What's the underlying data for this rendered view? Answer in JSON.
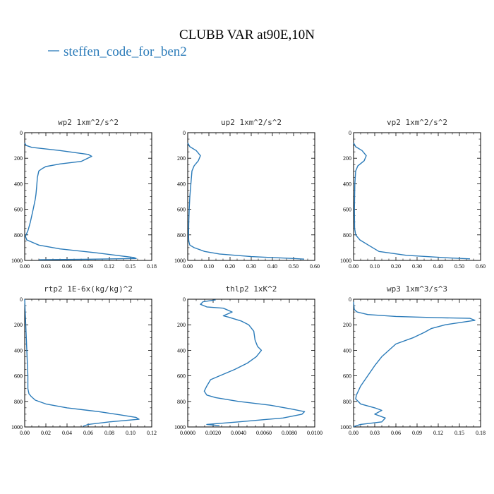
{
  "figure": {
    "title": "CLUBB VAR at90E,10N",
    "legend_label": "steffen_code_for_ben2",
    "series_color": "#2b7bb9"
  },
  "chart_data": [
    {
      "type": "line",
      "title": "wp2   1xm^2/s^2",
      "xlim": [
        0,
        0.18
      ],
      "xticks": [
        "0.00",
        "0.03",
        "0.06",
        "0.09",
        "0.12",
        "0.15",
        "0.18"
      ],
      "ylim": [
        0,
        1000
      ],
      "yticks": [
        "0",
        "200",
        "400",
        "600",
        "800",
        "1000"
      ],
      "y_inverted": true,
      "series": [
        {
          "x": [
            0.0,
            0.002,
            0.01,
            0.05,
            0.09,
            0.095,
            0.08,
            0.05,
            0.03,
            0.025,
            0.02,
            0.018,
            0.017,
            0.016,
            0.015,
            0.012,
            0.008,
            0.005,
            0.002,
            0.001,
            0.003,
            0.02,
            0.05,
            0.1,
            0.13,
            0.155,
            0.158,
            0.1,
            0.02
          ],
          "y": [
            80,
            100,
            115,
            140,
            170,
            185,
            225,
            245,
            265,
            280,
            300,
            350,
            420,
            480,
            520,
            600,
            700,
            760,
            800,
            810,
            840,
            880,
            910,
            940,
            960,
            978,
            985,
            990,
            995
          ]
        }
      ]
    },
    {
      "type": "line",
      "title": "up2   1xm^2/s^2",
      "xlim": [
        0,
        0.6
      ],
      "xticks": [
        "0.00",
        "0.10",
        "0.20",
        "0.30",
        "0.40",
        "0.50",
        "0.60"
      ],
      "ylim": [
        0,
        1000
      ],
      "yticks": [
        "0",
        "200",
        "400",
        "600",
        "800",
        "1000"
      ],
      "y_inverted": true,
      "series": [
        {
          "x": [
            0.0,
            0.01,
            0.04,
            0.06,
            0.05,
            0.03,
            0.02,
            0.015,
            0.01,
            0.007,
            0.005,
            0.004,
            0.005,
            0.01,
            0.03,
            0.08,
            0.15,
            0.3,
            0.5,
            0.55
          ],
          "y": [
            80,
            110,
            140,
            180,
            220,
            260,
            300,
            400,
            500,
            600,
            700,
            800,
            850,
            880,
            900,
            930,
            950,
            970,
            985,
            990
          ]
        }
      ]
    },
    {
      "type": "line",
      "title": "vp2   1xm^2/s^2",
      "xlim": [
        0,
        0.6
      ],
      "xticks": [
        "0.00",
        "0.10",
        "0.20",
        "0.30",
        "0.40",
        "0.50",
        "0.60"
      ],
      "ylim": [
        0,
        1000
      ],
      "yticks": [
        "0",
        "200",
        "400",
        "600",
        "800",
        "1000"
      ],
      "y_inverted": true,
      "series": [
        {
          "x": [
            0.0,
            0.01,
            0.04,
            0.06,
            0.05,
            0.02,
            0.01,
            0.006,
            0.004,
            0.005,
            0.01,
            0.03,
            0.07,
            0.12,
            0.25,
            0.45,
            0.55
          ],
          "y": [
            80,
            110,
            140,
            180,
            220,
            260,
            300,
            400,
            600,
            750,
            800,
            840,
            880,
            930,
            960,
            980,
            988
          ]
        }
      ]
    },
    {
      "type": "line",
      "title": "rtp2   1E-6x(kg/kg)^2",
      "xlim": [
        0,
        0.12
      ],
      "xticks": [
        "0.00",
        "0.02",
        "0.04",
        "0.06",
        "0.08",
        "0.10",
        "0.12"
      ],
      "ylim": [
        0,
        1000
      ],
      "yticks": [
        "0",
        "200",
        "400",
        "600",
        "800",
        "1000"
      ],
      "y_inverted": true,
      "series": [
        {
          "x": [
            0.0,
            0.001,
            0.002,
            0.003,
            0.003,
            0.004,
            0.006,
            0.01,
            0.02,
            0.04,
            0.07,
            0.09,
            0.105,
            0.108,
            0.08,
            0.06,
            0.055
          ],
          "y": [
            0,
            200,
            400,
            600,
            700,
            740,
            760,
            790,
            820,
            850,
            880,
            905,
            925,
            940,
            960,
            980,
            995
          ]
        }
      ]
    },
    {
      "type": "line",
      "title": "thlp2   1xK^2",
      "xlim": [
        0,
        0.01
      ],
      "xticks": [
        "0.0000",
        "0.0020",
        "0.0040",
        "0.0060",
        "0.0080",
        "0.0100"
      ],
      "ylim": [
        0,
        1000
      ],
      "yticks": [
        "0",
        "200",
        "400",
        "600",
        "800",
        "1000"
      ],
      "y_inverted": true,
      "series": [
        {
          "x": [
            0.0022,
            0.0012,
            0.001,
            0.0015,
            0.0028,
            0.0035,
            0.0028,
            0.0032,
            0.0042,
            0.0048,
            0.0052,
            0.0053,
            0.0055,
            0.0058,
            0.0054,
            0.0047,
            0.0037,
            0.0025,
            0.0018,
            0.0015,
            0.0013,
            0.0015,
            0.0022,
            0.004,
            0.0065,
            0.0082,
            0.0092,
            0.009,
            0.0075,
            0.004,
            0.0015,
            0.0025
          ],
          "y": [
            5,
            20,
            40,
            60,
            70,
            100,
            130,
            140,
            170,
            200,
            250,
            320,
            370,
            400,
            450,
            500,
            550,
            600,
            630,
            680,
            720,
            750,
            770,
            800,
            830,
            860,
            880,
            900,
            930,
            960,
            980,
            990
          ]
        }
      ]
    },
    {
      "type": "line",
      "title": "wp3   1xm^3/s^3",
      "xlim": [
        0,
        0.18
      ],
      "xticks": [
        "0.00",
        "0.03",
        "0.06",
        "0.09",
        "0.12",
        "0.15",
        "0.18"
      ],
      "ylim": [
        0,
        1000
      ],
      "yticks": [
        "0",
        "200",
        "400",
        "600",
        "800",
        "1000"
      ],
      "y_inverted": true,
      "series": [
        {
          "x": [
            0.0,
            0.001,
            0.005,
            0.02,
            0.06,
            0.12,
            0.165,
            0.172,
            0.16,
            0.13,
            0.11,
            0.1,
            0.085,
            0.06,
            0.05,
            0.04,
            0.03,
            0.02,
            0.01,
            0.004,
            0.003,
            0.01,
            0.03,
            0.04,
            0.03,
            0.045,
            0.04,
            0.01,
            0.0
          ],
          "y": [
            20,
            80,
            100,
            120,
            135,
            145,
            150,
            165,
            175,
            200,
            230,
            260,
            300,
            350,
            400,
            450,
            520,
            600,
            680,
            750,
            780,
            820,
            850,
            870,
            900,
            930,
            960,
            980,
            998
          ]
        }
      ]
    }
  ]
}
